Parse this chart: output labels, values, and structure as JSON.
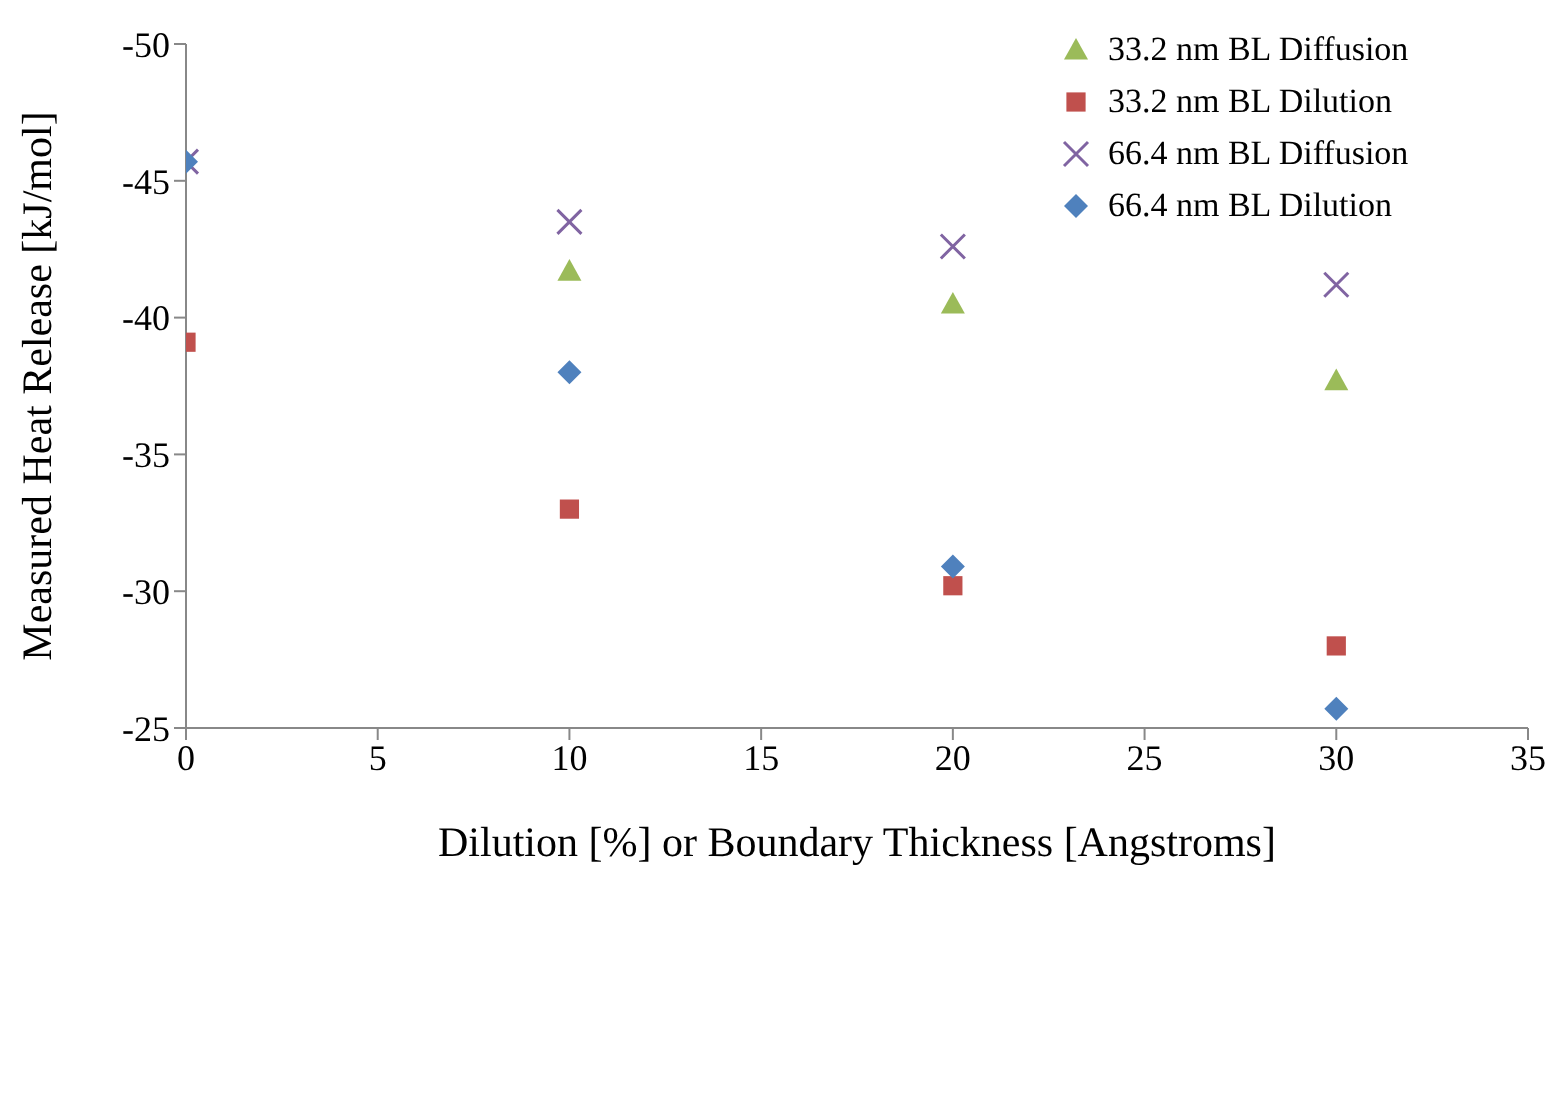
{
  "chart_data": {
    "type": "scatter",
    "xlabel": "Dilution [%] or Boundary Thickness [Angstroms]",
    "ylabel": "Measured Heat Release [kJ/mol]",
    "xlim": [
      0,
      35
    ],
    "xticks": [
      0,
      5,
      10,
      15,
      20,
      25,
      30,
      35
    ],
    "ylim": [
      -25,
      -50
    ],
    "yticks": [
      -25,
      -30,
      -35,
      -40,
      -45,
      -50
    ],
    "grid": false,
    "legend": "top right",
    "series": [
      {
        "name": "33.2 nm BL Diffusion",
        "color": "#9bbb59",
        "marker": "triangle",
        "x": [
          10,
          20,
          30
        ],
        "values": [
          -41.7,
          -40.5,
          -37.7
        ]
      },
      {
        "name": "33.2 nm BL Dilution",
        "color": "#c0504d",
        "marker": "square",
        "x": [
          0,
          10,
          20,
          30
        ],
        "values": [
          -39.1,
          -33.0,
          -30.2,
          -28.0
        ]
      },
      {
        "name": "66.4 nm BL Diffusion",
        "color": "#8064a2",
        "marker": "cross",
        "x": [
          0,
          10,
          20,
          30
        ],
        "values": [
          -45.7,
          -43.5,
          -42.6,
          -41.2
        ]
      },
      {
        "name": "66.4 nm BL Dilution",
        "color": "#4f81bd",
        "marker": "diamond",
        "x": [
          0,
          10,
          20,
          30
        ],
        "values": [
          -45.7,
          -38.0,
          -30.9,
          -25.7
        ]
      }
    ]
  }
}
